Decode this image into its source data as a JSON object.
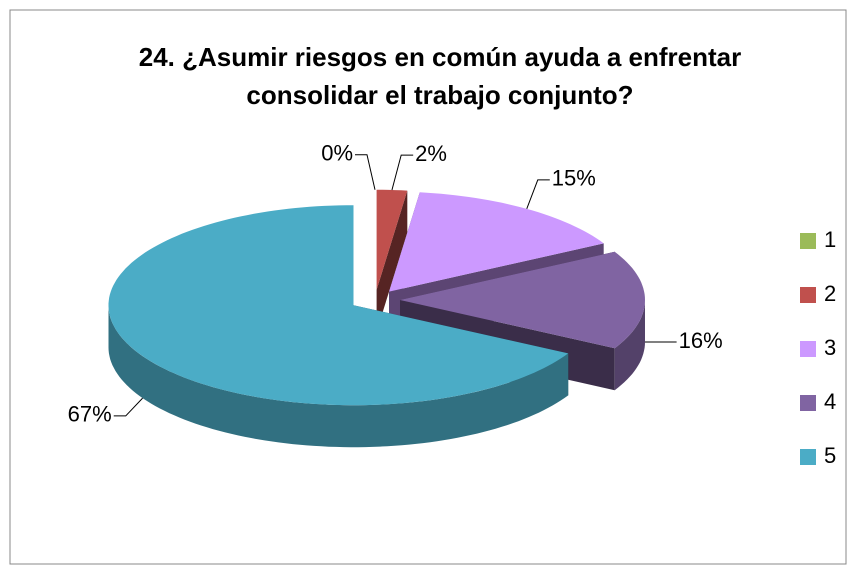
{
  "chart_data": {
    "type": "pie3d",
    "title": "24. ¿Asumir riesgos en común ayuda a enfrentar consolidar el trabajo conjunto?",
    "categories": [
      "1",
      "2",
      "3",
      "4",
      "5"
    ],
    "values": [
      0,
      2,
      15,
      16,
      67
    ],
    "value_labels": [
      "0%",
      "2%",
      "15%",
      "16%",
      "67%"
    ],
    "colors": [
      "#9bbb59",
      "#c0504d",
      "#cc99ff",
      "#8064a2",
      "#4bacc6"
    ],
    "legend": "right"
  }
}
